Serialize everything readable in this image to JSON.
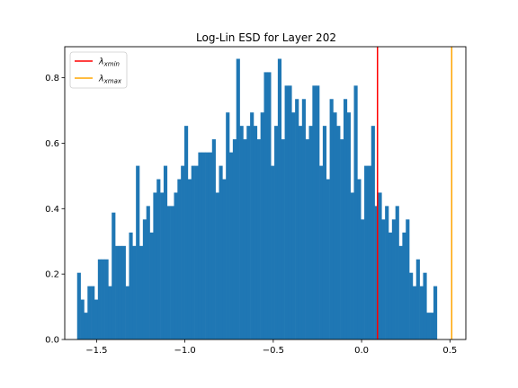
{
  "chart_data": {
    "type": "bar",
    "title": "Log-Lin ESD for Layer 202",
    "xlabel": "",
    "ylabel": "",
    "xlim": [
      -1.68,
      0.59
    ],
    "ylim": [
      0,
      0.895
    ],
    "x_ticks": [
      "−1.5",
      "−1.0",
      "−0.5",
      "0.0",
      "0.5"
    ],
    "x_tick_values": [
      -1.5,
      -1.0,
      -0.5,
      0.0,
      0.5
    ],
    "y_ticks": [
      "0.0",
      "0.2",
      "0.4",
      "0.6",
      "0.8"
    ],
    "y_tick_values": [
      0.0,
      0.2,
      0.4,
      0.6,
      0.8
    ],
    "grid": false,
    "bar_color": "#1f77b4",
    "bins": {
      "start": -1.61,
      "width": 0.01958,
      "values": [
        0.204,
        0.122,
        0.082,
        0.163,
        0.163,
        0.122,
        0.245,
        0.245,
        0.245,
        0.163,
        0.388,
        0.286,
        0.286,
        0.286,
        0.163,
        0.327,
        0.286,
        0.531,
        0.286,
        0.367,
        0.408,
        0.327,
        0.449,
        0.49,
        0.449,
        0.531,
        0.408,
        0.408,
        0.449,
        0.49,
        0.531,
        0.653,
        0.49,
        0.531,
        0.531,
        0.572,
        0.572,
        0.572,
        0.572,
        0.612,
        0.449,
        0.531,
        0.49,
        0.694,
        0.572,
        0.612,
        0.858,
        0.653,
        0.612,
        0.653,
        0.694,
        0.653,
        0.612,
        0.694,
        0.817,
        0.817,
        0.531,
        0.653,
        0.858,
        0.612,
        0.776,
        0.776,
        0.694,
        0.735,
        0.653,
        0.735,
        0.612,
        0.653,
        0.776,
        0.776,
        0.531,
        0.653,
        0.49,
        0.735,
        0.694,
        0.653,
        0.612,
        0.735,
        0.694,
        0.449,
        0.776,
        0.49,
        0.367,
        0.531,
        0.531,
        0.653,
        0.408,
        0.449,
        0.367,
        0.408,
        0.327,
        0.367,
        0.408,
        0.286,
        0.327,
        0.367,
        0.204,
        0.163,
        0.245,
        0.163,
        0.204,
        0.082,
        0.082,
        0.163
      ]
    },
    "vlines": [
      {
        "name": "λ_xmin",
        "x": 0.09,
        "color": "#ff0000"
      },
      {
        "name": "λ_xmax",
        "x": 0.51,
        "color": "#ffa500"
      }
    ],
    "legend": {
      "position": "top-left",
      "entries": [
        {
          "symbol": "λ",
          "sub": "xmin",
          "color": "#ff0000"
        },
        {
          "symbol": "λ",
          "sub": "xmax",
          "color": "#ffa500"
        }
      ]
    }
  }
}
